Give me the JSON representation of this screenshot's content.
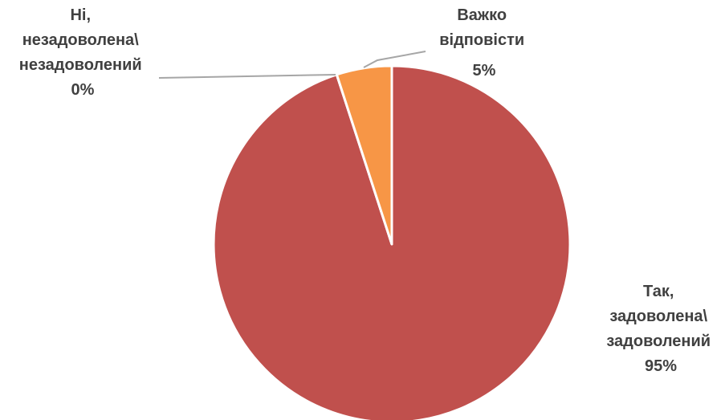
{
  "chart_data": {
    "type": "pie",
    "start_angle_deg": 0,
    "direction": "clockwise",
    "slices": [
      {
        "label_lines": [
          "Так,",
          "задоволена\\",
          "задоволений"
        ],
        "value": 95,
        "display": "95%",
        "color": "#c0504d"
      },
      {
        "label_lines": [
          "Ні,",
          "незадоволена\\",
          "незадоволений"
        ],
        "value": 0,
        "display": "0%",
        "color": "#4f81bd"
      },
      {
        "label_lines": [
          "Важко",
          "відповісти"
        ],
        "value": 5,
        "display": "5%",
        "color": "#f79646"
      }
    ]
  }
}
